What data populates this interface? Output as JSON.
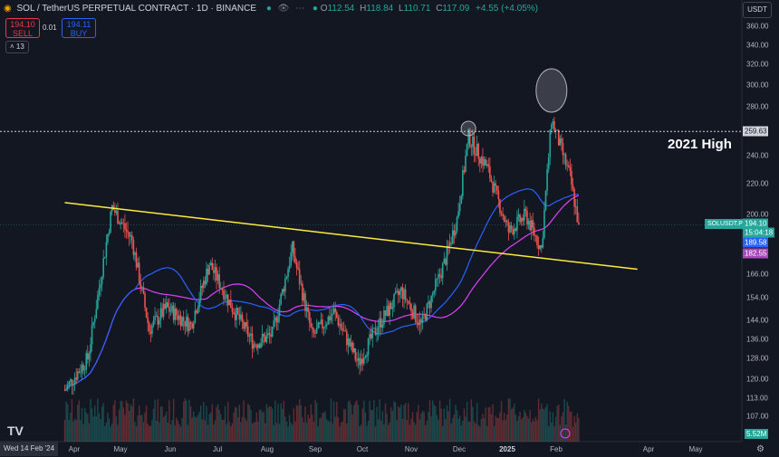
{
  "header": {
    "symbol_title": "SOL / TetherUS PERPETUAL CONTRACT · 1D · BINANCE",
    "ohlc": [
      {
        "label": "O",
        "value": "112.54"
      },
      {
        "label": "H",
        "value": "118.84"
      },
      {
        "label": "L",
        "value": "110.71"
      },
      {
        "label": "C",
        "value": "117.09"
      }
    ],
    "change": "+4.55 (+4.05%)",
    "currency": "USDT"
  },
  "trade": {
    "sell_price": "194.10",
    "sell_label": "SELL",
    "spread": "0.01",
    "buy_price": "194.11",
    "buy_label": "BUY",
    "indicators_count": "13"
  },
  "y_axis": {
    "ticks": [
      "360.00",
      "340.00",
      "320.00",
      "300.00",
      "280.00",
      "259.63",
      "240.00",
      "220.00",
      "200.00",
      "194.10",
      "189.58",
      "182.55",
      "166.00",
      "154.00",
      "144.00",
      "136.00",
      "128.00",
      "120.00",
      "113.00",
      "107.00",
      "5.52M"
    ],
    "price_labels": {
      "last_price": "194.10",
      "countdown": "15:04:18",
      "ma_fast": "189.58",
      "ma_slow": "182.55",
      "level": "259.63",
      "volume": "5.52M"
    }
  },
  "x_axis": {
    "cursor_date": "Wed 14 Feb '24",
    "labels": [
      "Apr",
      "May",
      "Jun",
      "Jul",
      "Aug",
      "Sep",
      "Oct",
      "Nov",
      "Dec",
      "2025",
      "Feb",
      "Apr",
      "May"
    ]
  },
  "annotations": {
    "note_text": "2021 High",
    "symbol_tag": "SOLUSDT.P"
  },
  "colors": {
    "background": "#131722",
    "up": "#26a69a",
    "down": "#ef5350",
    "trendline": "#ffeb3b",
    "ma_fast": "#2962ff",
    "ma_slow": "#e040fb"
  },
  "chart_data": {
    "type": "candlestick",
    "scale": "log",
    "ylim": [
      100,
      370
    ],
    "resistance_level": 259.63,
    "last_price": 194.1,
    "trend_line": [
      [
        "2024-02-14",
        208
      ],
      [
        "2025-03-20",
        169
      ]
    ],
    "highlights": [
      [
        "2024-11-22",
        262
      ],
      [
        "2025-01-19",
        295
      ]
    ],
    "anchors": [
      [
        "2024-02-14",
        116
      ],
      [
        "2024-03-01",
        128
      ],
      [
        "2024-03-18",
        205
      ],
      [
        "2024-04-01",
        185
      ],
      [
        "2024-04-13",
        140
      ],
      [
        "2024-04-25",
        150
      ],
      [
        "2024-05-12",
        142
      ],
      [
        "2024-05-25",
        172
      ],
      [
        "2024-06-10",
        150
      ],
      [
        "2024-06-25",
        134
      ],
      [
        "2024-07-08",
        138
      ],
      [
        "2024-07-22",
        180
      ],
      [
        "2024-08-05",
        137
      ],
      [
        "2024-08-20",
        148
      ],
      [
        "2024-09-06",
        126
      ],
      [
        "2024-09-20",
        142
      ],
      [
        "2024-10-06",
        158
      ],
      [
        "2024-10-20",
        142
      ],
      [
        "2024-11-05",
        172
      ],
      [
        "2024-11-14",
        198
      ],
      [
        "2024-11-22",
        255
      ],
      [
        "2024-12-05",
        232
      ],
      [
        "2024-12-20",
        190
      ],
      [
        "2025-01-01",
        200
      ],
      [
        "2025-01-12",
        180
      ],
      [
        "2025-01-19",
        270
      ],
      [
        "2025-02-01",
        225
      ],
      [
        "2025-02-07",
        194
      ]
    ]
  }
}
